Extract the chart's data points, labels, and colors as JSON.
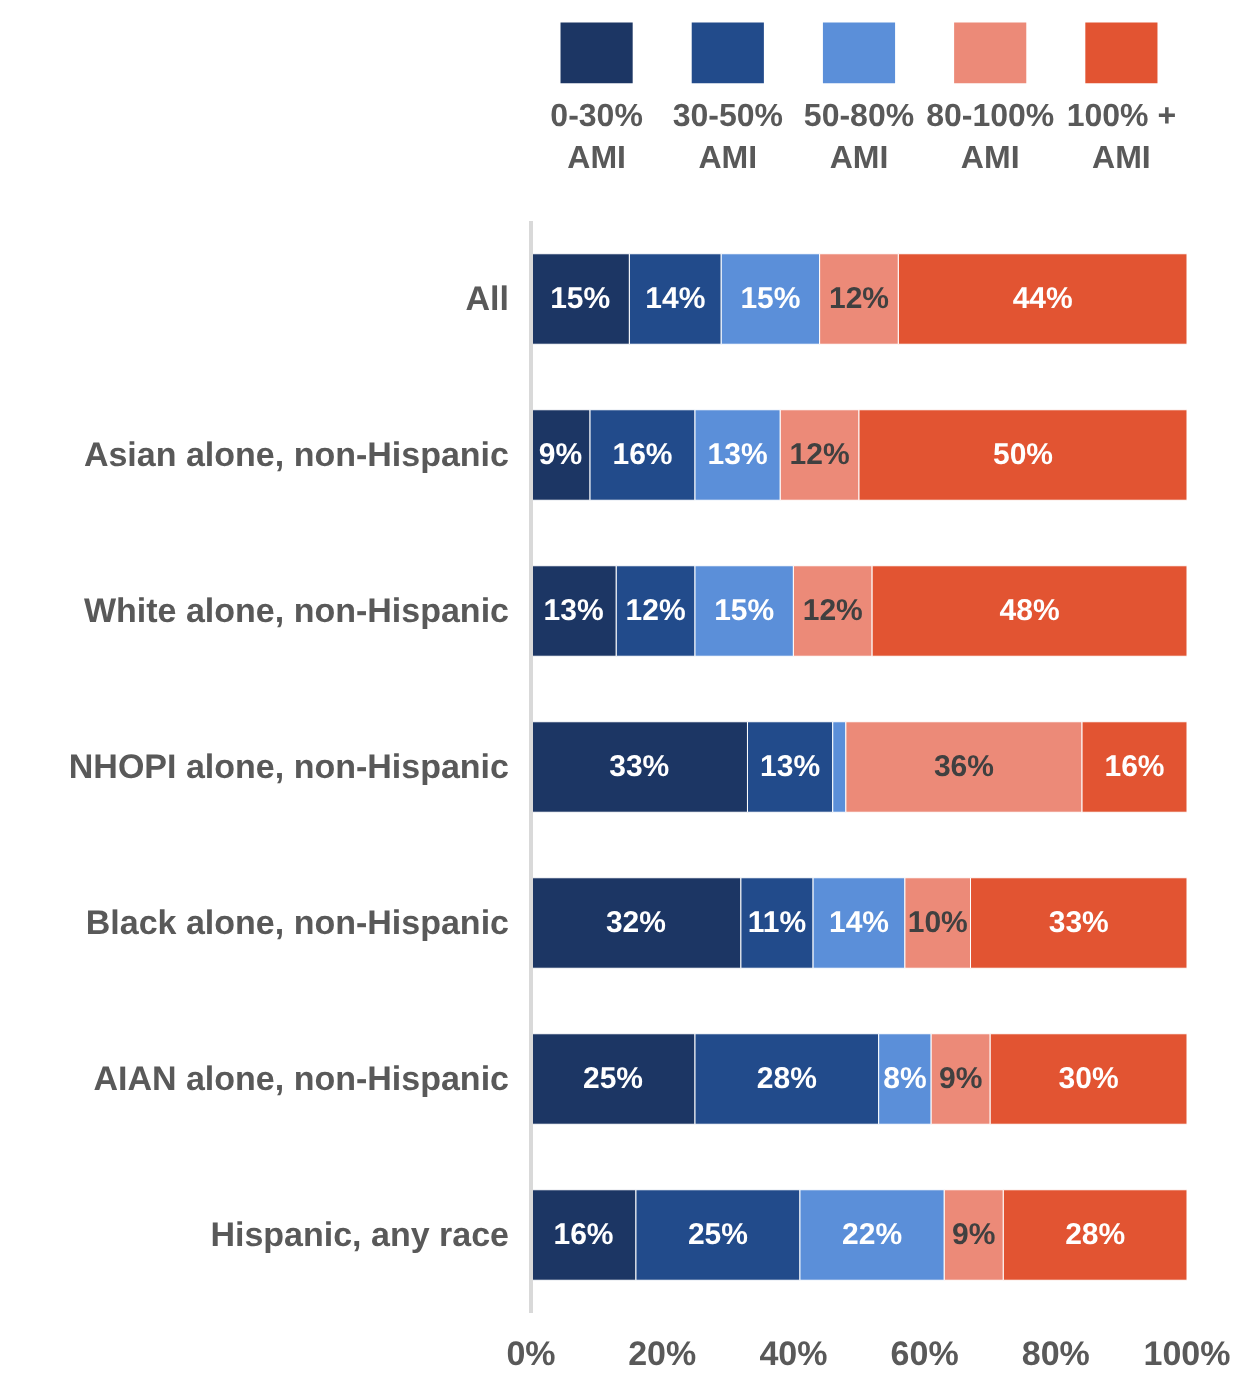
{
  "chart_data": {
    "type": "bar",
    "orientation": "horizontal",
    "stacked": true,
    "legend": "top",
    "grid": false,
    "categories": [
      "All",
      "Asian alone, non-Hispanic",
      "White alone, non-Hispanic",
      "NHOPI alone, non-Hispanic",
      "Black alone, non-Hispanic",
      "AIAN alone, non-Hispanic",
      "Hispanic, any race"
    ],
    "xlim": [
      0,
      100
    ],
    "xticks": [
      {
        "value": 0,
        "label": "0%"
      },
      {
        "value": 20,
        "label": "20%"
      },
      {
        "value": 40,
        "label": "40%"
      },
      {
        "value": 60,
        "label": "60%"
      },
      {
        "value": 80,
        "label": "80%"
      },
      {
        "value": 100,
        "label": "100%"
      }
    ],
    "series": [
      {
        "name": "0-30% AMI",
        "color": "#1c3664",
        "values": [
          15,
          9,
          13,
          33,
          32,
          25,
          16
        ],
        "value_labels": [
          "15%",
          "9%",
          "13%",
          "33%",
          "32%",
          "25%",
          "16%"
        ]
      },
      {
        "name": "30-50% AMI",
        "color": "#224b8b",
        "values": [
          14,
          16,
          12,
          13,
          11,
          28,
          25
        ],
        "value_labels": [
          "14%",
          "16%",
          "12%",
          "13%",
          "11%",
          "28%",
          "25%"
        ]
      },
      {
        "name": "50-80% AMI",
        "color": "#5b8fd9",
        "values": [
          15,
          13,
          15,
          2,
          14,
          8,
          22
        ],
        "value_labels": [
          "15%",
          "13%",
          "15%",
          null,
          "14%",
          "8%",
          "22%"
        ]
      },
      {
        "name": "80-100% AMI",
        "color": "#ec8a78",
        "values": [
          12,
          12,
          12,
          36,
          10,
          9,
          9
        ],
        "value_labels": [
          "12%",
          "12%",
          "12%",
          "36%",
          "10%",
          "9%",
          "9%"
        ]
      },
      {
        "name": "100% + AMI",
        "color": "#e25432",
        "values": [
          44,
          50,
          48,
          16,
          33,
          30,
          28
        ],
        "value_labels": [
          "44%",
          "50%",
          "48%",
          "16%",
          "33%",
          "30%",
          "28%"
        ]
      }
    ]
  }
}
